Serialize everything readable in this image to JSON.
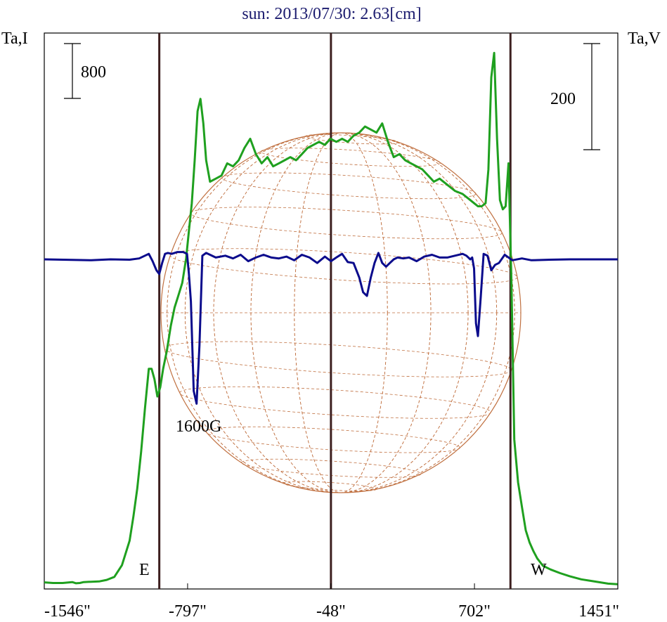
{
  "chart_data": {
    "type": "line",
    "title": "sun: 2013/07/30: 2.63[cm]",
    "left_axis_label": "Ta,I",
    "right_axis_label": "Ta,V",
    "x_unit": "arcsec",
    "xlim": [
      -1546,
      1451
    ],
    "x_ticks": [
      -1546,
      -797,
      -48,
      702,
      1451
    ],
    "x_tick_labels": [
      "-1546\"",
      "-797\"",
      "-48\"",
      "702\"",
      "1451\""
    ],
    "scale_bar_I": {
      "label": "800",
      "value": 800
    },
    "scale_bar_V": {
      "label": "200",
      "value": 200
    },
    "annotations": {
      "east": "E",
      "west": "W",
      "field": "1600G"
    },
    "vertical_markers_x": [
      -945,
      -48,
      890
    ],
    "colors": {
      "intensity": "#1fa01f",
      "polarization": "#0b0b8c",
      "markers": "#3d1f1f",
      "disk_grid": "#c07040",
      "title": "#1a1a6e"
    },
    "series": [
      {
        "name": "",
        "id": "intensity",
        "x": [
          -1546,
          -1500,
          -1450,
          -1400,
          -1380,
          -1360,
          -1340,
          -1300,
          -1260,
          -1220,
          -1180,
          -1140,
          -1100,
          -1080,
          -1060,
          -1040,
          -1020,
          -1000,
          -985,
          -970,
          -955,
          -940,
          -925,
          -905,
          -885,
          -865,
          -845,
          -825,
          -805,
          -790,
          -775,
          -760,
          -745,
          -730,
          -715,
          -700,
          -680,
          -650,
          -620,
          -590,
          -560,
          -530,
          -500,
          -470,
          -440,
          -410,
          -380,
          -350,
          -320,
          -290,
          -260,
          -230,
          -200,
          -170,
          -140,
          -110,
          -80,
          -50,
          -20,
          10,
          40,
          70,
          100,
          130,
          160,
          190,
          220,
          250,
          280,
          310,
          340,
          370,
          400,
          430,
          460,
          490,
          520,
          560,
          600,
          640,
          680,
          700,
          720,
          740,
          760,
          775,
          790,
          805,
          820,
          835,
          850,
          865,
          880,
          895,
          910,
          930,
          950,
          970,
          990,
          1010,
          1030,
          1060,
          1100,
          1150,
          1200,
          1260,
          1320,
          1400,
          1451
        ],
        "y": [
          -30,
          -40,
          -40,
          -25,
          -45,
          -40,
          -25,
          -20,
          -15,
          10,
          60,
          250,
          650,
          1050,
          1500,
          2100,
          2800,
          3450,
          3450,
          3280,
          3000,
          3150,
          3450,
          3750,
          4150,
          4450,
          4650,
          4850,
          5250,
          5700,
          6150,
          6850,
          7650,
          7850,
          7450,
          6850,
          6500,
          6550,
          6600,
          6800,
          6750,
          6850,
          7050,
          7200,
          6950,
          6800,
          6900,
          6750,
          6800,
          6850,
          6900,
          6850,
          6950,
          7050,
          7100,
          7150,
          7100,
          7200,
          7150,
          7200,
          7150,
          7250,
          7300,
          7400,
          7350,
          7300,
          7450,
          7150,
          6900,
          6950,
          6850,
          6800,
          6750,
          6700,
          6600,
          6500,
          6550,
          6450,
          6350,
          6300,
          6200,
          6150,
          6100,
          6100,
          6150,
          6700,
          8200,
          8600,
          7200,
          6200,
          6050,
          6100,
          6800,
          4900,
          2300,
          1600,
          1200,
          820,
          620,
          480,
          360,
          240,
          180,
          120,
          70,
          20,
          -10,
          -50,
          -60
        ]
      },
      {
        "name": "",
        "id": "polarization",
        "x": [
          -1546,
          -1300,
          -1200,
          -1100,
          -1050,
          -1000,
          -980,
          -960,
          -945,
          -930,
          -915,
          -900,
          -880,
          -850,
          -820,
          -800,
          -790,
          -780,
          -765,
          -750,
          -735,
          -720,
          -700,
          -650,
          -600,
          -560,
          -520,
          -480,
          -440,
          -400,
          -360,
          -320,
          -280,
          -240,
          -200,
          -160,
          -120,
          -80,
          -48,
          -20,
          10,
          40,
          70,
          100,
          120,
          140,
          160,
          180,
          200,
          220,
          240,
          260,
          280,
          300,
          330,
          360,
          400,
          440,
          480,
          520,
          560,
          600,
          640,
          660,
          680,
          690,
          700,
          710,
          720,
          735,
          750,
          770,
          790,
          810,
          830,
          860,
          900,
          950,
          1000,
          1100,
          1200,
          1300,
          1451
        ],
        "y": [
          0,
          -5,
          0,
          -2,
          5,
          30,
          -10,
          -60,
          -80,
          -20,
          30,
          35,
          30,
          40,
          40,
          30,
          -80,
          -230,
          -720,
          -790,
          -470,
          20,
          35,
          10,
          20,
          5,
          25,
          -10,
          10,
          25,
          10,
          5,
          15,
          -5,
          25,
          10,
          -20,
          15,
          -10,
          10,
          30,
          -15,
          -20,
          -100,
          -180,
          -200,
          -100,
          -20,
          35,
          -20,
          -40,
          -20,
          0,
          10,
          5,
          10,
          -10,
          15,
          25,
          10,
          10,
          20,
          30,
          20,
          0,
          10,
          -50,
          -350,
          -420,
          -200,
          30,
          20,
          -60,
          -30,
          -20,
          25,
          -5,
          5,
          -5,
          -2,
          0,
          0,
          0
        ]
      }
    ]
  }
}
